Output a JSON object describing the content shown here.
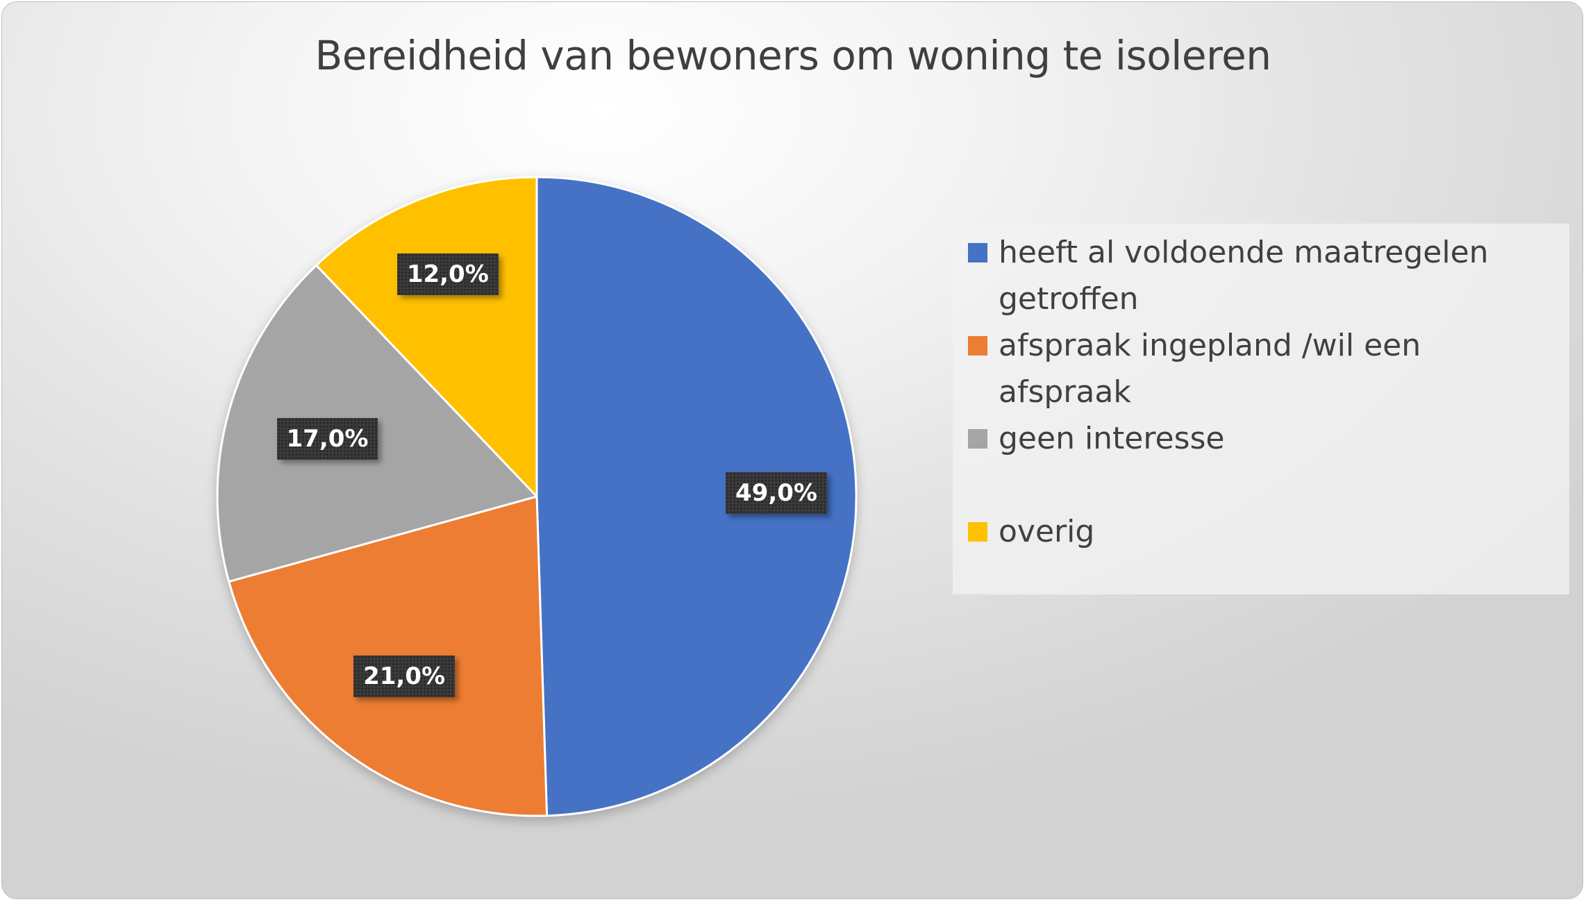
{
  "chart_data": {
    "type": "pie",
    "title": "Bereidheid van bewoners om woning te isoleren",
    "categories": [
      "heeft al voldoende maatregelen getroffen",
      "afspraak ingepland /wil een afspraak",
      "geen interesse",
      "overig"
    ],
    "values": [
      49.0,
      21.0,
      17.0,
      12.0
    ],
    "data_labels": [
      "49,0%",
      "21,0%",
      "17,0%",
      "12,0%"
    ],
    "colors": [
      "#4472C4",
      "#ED7D31",
      "#A5A5A5",
      "#FFC000"
    ],
    "start_angle_deg": 0,
    "direction": "clockwise",
    "legend_position": "right"
  }
}
